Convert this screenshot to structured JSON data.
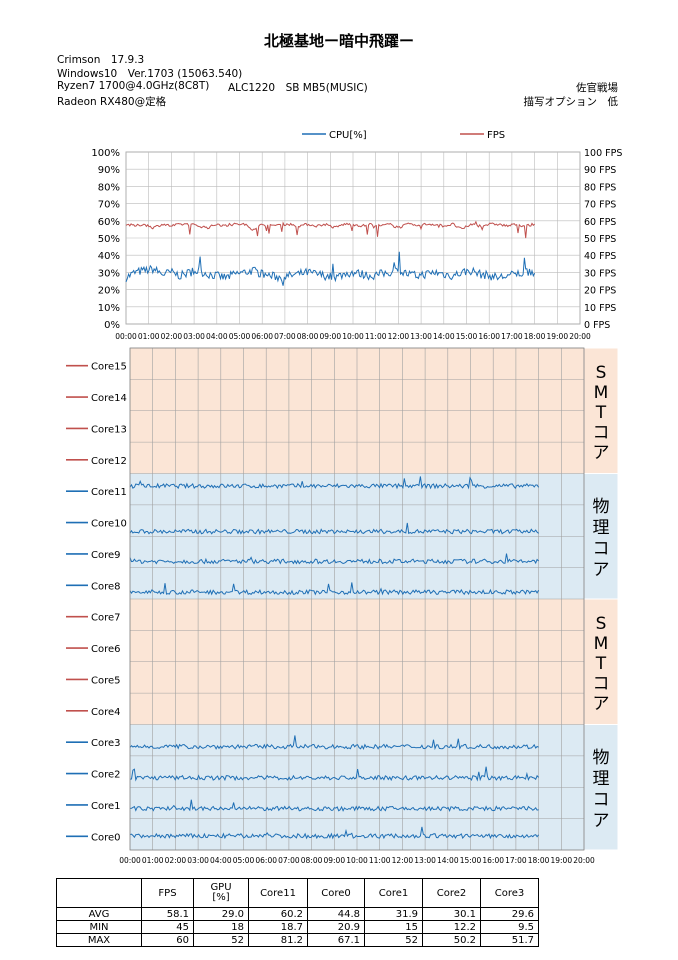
{
  "header": {
    "title": "北極基地ー暗中飛躍ー",
    "driver": "Crimson　17.9.3",
    "os": "Windows10　Ver.1703 (15063.540)",
    "cpu": "Ryzen7 1700@4.0GHz(8C8T)",
    "audio": "ALC1220　SB MB5(MUSIC)",
    "gpu": "Radeon RX480@定格",
    "mode": "佐官戦場",
    "quality": "描写オプション　低"
  },
  "chart_data": [
    {
      "type": "line",
      "legend": [
        "CPU[%]",
        "FPS"
      ],
      "legend_position": "top",
      "grid": true,
      "x_ticks": [
        "00:00",
        "01:00",
        "02:00",
        "03:00",
        "04:00",
        "05:00",
        "06:00",
        "07:00",
        "08:00",
        "09:00",
        "10:00",
        "11:00",
        "12:00",
        "13:00",
        "14:00",
        "15:00",
        "16:00",
        "17:00",
        "18:00",
        "19:00",
        "20:00"
      ],
      "y_left_ticks": [
        "0%",
        "10%",
        "20%",
        "30%",
        "40%",
        "50%",
        "60%",
        "70%",
        "80%",
        "90%",
        "100%"
      ],
      "y_right_ticks": [
        "0 FPS",
        "10 FPS",
        "20 FPS",
        "30 FPS",
        "40 FPS",
        "50 FPS",
        "60 FPS",
        "70 FPS",
        "80 FPS",
        "90 FPS",
        "100 FPS"
      ],
      "xlim_minutes": [
        0,
        20
      ],
      "ylim_left": [
        0,
        100
      ],
      "ylim_right": [
        0,
        100
      ],
      "series": [
        {
          "name": "CPU[%]",
          "color": "#1f6fb5",
          "axis": "left",
          "x_end_minutes": 18.0,
          "values": [
            27,
            30,
            31,
            32,
            29,
            30,
            28,
            30,
            31,
            29,
            28,
            27,
            29,
            30,
            31,
            29,
            28,
            27,
            28,
            29,
            30,
            29,
            28,
            27,
            29,
            30,
            29,
            28,
            29,
            30,
            31,
            29,
            28,
            29,
            30,
            29,
            28,
            30,
            31,
            29,
            28,
            27,
            28,
            29,
            30,
            29
          ],
          "min": 18.7,
          "max": 52
        },
        {
          "name": "FPS",
          "color": "#c0504d",
          "axis": "right",
          "x_end_minutes": 18.0,
          "values": [
            58,
            57,
            58,
            56,
            58,
            57,
            58,
            58,
            57,
            56,
            58,
            57,
            58,
            58,
            55,
            58,
            57,
            58,
            58,
            57,
            58,
            57,
            58,
            56,
            58,
            58,
            57,
            58,
            57,
            58,
            56,
            58,
            57,
            58,
            58,
            57,
            58,
            55,
            58,
            57,
            58,
            58,
            57,
            58,
            57,
            58
          ],
          "avg": 58.1,
          "min": 45,
          "max": 60
        }
      ]
    },
    {
      "type": "line",
      "x_ticks": [
        "00:00",
        "01:00",
        "02:00",
        "03:00",
        "04:00",
        "05:00",
        "06:00",
        "07:00",
        "08:00",
        "09:00",
        "10:00",
        "11:00",
        "12:00",
        "13:00",
        "14:00",
        "15:00",
        "16:00",
        "17:00",
        "18:00",
        "19:00",
        "20:00"
      ],
      "xlim_minutes": [
        0,
        20
      ],
      "rows": [
        {
          "name": "Core15",
          "color": "#c0504d",
          "level": null
        },
        {
          "name": "Core14",
          "color": "#c0504d",
          "level": null
        },
        {
          "name": "Core13",
          "color": "#c0504d",
          "level": null
        },
        {
          "name": "Core12",
          "color": "#c0504d",
          "level": null
        },
        {
          "name": "Core11",
          "color": "#1f6fb5",
          "level": 60.2
        },
        {
          "name": "Core10",
          "color": "#1f6fb5",
          "level": 15
        },
        {
          "name": "Core9",
          "color": "#1f6fb5",
          "level": 20
        },
        {
          "name": "Core8",
          "color": "#1f6fb5",
          "level": 22
        },
        {
          "name": "Core7",
          "color": "#c0504d",
          "level": null
        },
        {
          "name": "Core6",
          "color": "#c0504d",
          "level": null
        },
        {
          "name": "Core5",
          "color": "#c0504d",
          "level": null
        },
        {
          "name": "Core4",
          "color": "#c0504d",
          "level": null
        },
        {
          "name": "Core3",
          "color": "#1f6fb5",
          "level": 29.6
        },
        {
          "name": "Core2",
          "color": "#1f6fb5",
          "level": 30.1
        },
        {
          "name": "Core1",
          "color": "#1f6fb5",
          "level": 31.9
        },
        {
          "name": "Core0",
          "color": "#1f6fb5",
          "level": 44.8
        }
      ],
      "groups": [
        {
          "label": [
            "S",
            "M",
            "T",
            "コ",
            "ア"
          ],
          "type": "smt",
          "color": "#fbe5d6"
        },
        {
          "label": [
            "物",
            "理",
            "コ",
            "ア"
          ],
          "type": "phys",
          "color": "#dceaf3"
        },
        {
          "label": [
            "S",
            "M",
            "T",
            "コ",
            "ア"
          ],
          "type": "smt",
          "color": "#fbe5d6"
        },
        {
          "label": [
            "物",
            "理",
            "コ",
            "ア"
          ],
          "type": "phys",
          "color": "#dceaf3"
        }
      ]
    },
    {
      "type": "table",
      "columns": [
        "",
        "FPS",
        "GPU\n[%]",
        "Core11",
        "Core0",
        "Core1",
        "Core2",
        "Core3"
      ],
      "rows": [
        [
          "AVG",
          "58.1",
          "29.0",
          "60.2",
          "44.8",
          "31.9",
          "30.1",
          "29.6"
        ],
        [
          "MIN",
          "45",
          "18",
          "18.7",
          "20.9",
          "15",
          "12.2",
          "9.5"
        ],
        [
          "MAX",
          "60",
          "52",
          "81.2",
          "67.1",
          "52",
          "50.2",
          "51.7"
        ]
      ]
    }
  ]
}
